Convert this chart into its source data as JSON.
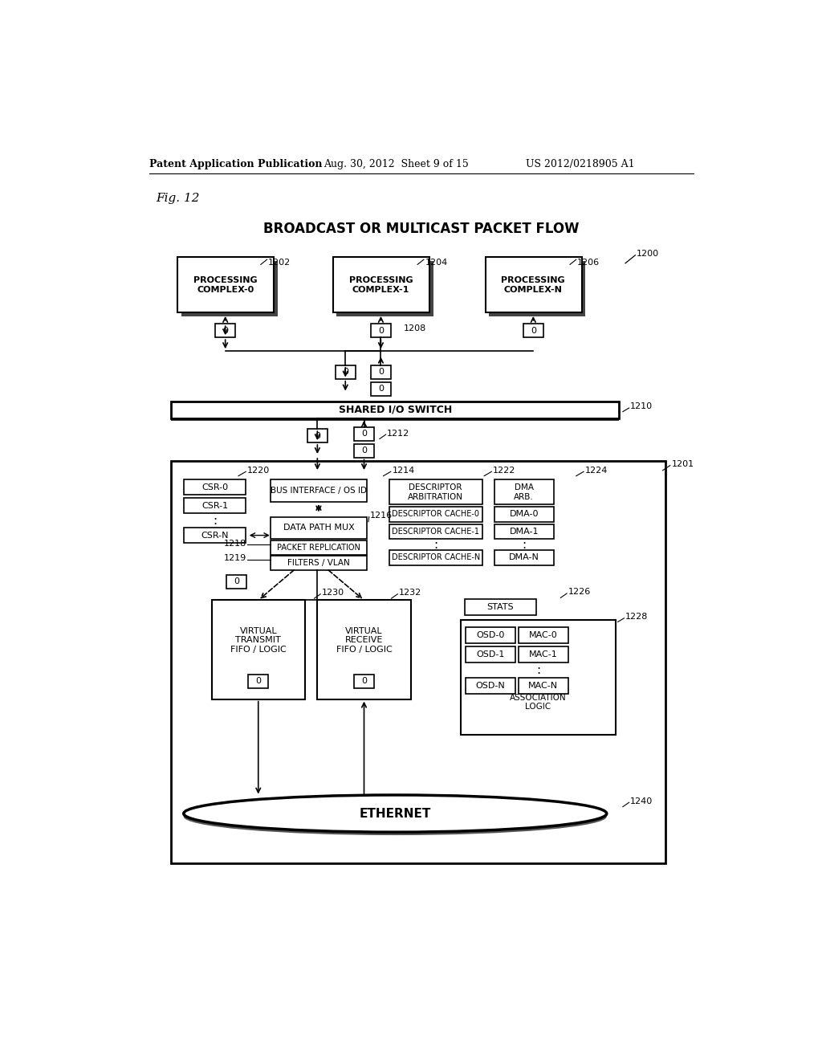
{
  "title": "BROADCAST OR MULTICAST PACKET FLOW",
  "fig_label": "Fig. 12",
  "patent_header": "Patent Application Publication",
  "patent_date": "Aug. 30, 2012  Sheet 9 of 15",
  "patent_number": "US 2012/0218905 A1",
  "bg_color": "#ffffff"
}
